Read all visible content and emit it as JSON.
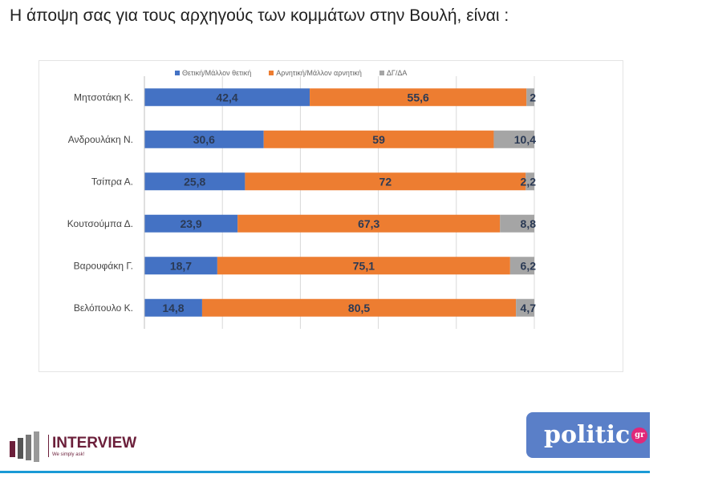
{
  "title": "Η άποψη σας για τους αρχηγούς των κομμάτων στην Βουλή,  είναι :",
  "logos": {
    "left": "INTERVIEW",
    "left_tagline": "We simply ask!",
    "right": "politic",
    "right_badge": "gr"
  },
  "chart_data": {
    "type": "bar",
    "orientation": "horizontal",
    "stacked": true,
    "categories": [
      "Μητσοτάκη Κ.",
      "Ανδρουλάκη Ν.",
      "Τσίπρα Α.",
      "Κουτσούμπα Δ.",
      "Βαρουφάκη Γ.",
      "Βελόπουλο Κ."
    ],
    "series": [
      {
        "name": "Θετική/Μάλλον θετική",
        "color": "#4472c4",
        "values": [
          42.4,
          30.6,
          25.8,
          23.9,
          18.7,
          14.8
        ]
      },
      {
        "name": "Αρνητική/Μάλλον αρνητική",
        "color": "#ed7d31",
        "values": [
          55.6,
          59,
          72,
          67.3,
          75.1,
          80.5
        ]
      },
      {
        "name": "ΔΓ/ΔΑ",
        "color": "#a5a5a5",
        "values": [
          2,
          10.4,
          2.2,
          8.8,
          6.2,
          4.7
        ]
      }
    ],
    "data_labels": [
      [
        "42,4",
        "55,6",
        "2"
      ],
      [
        "30,6",
        "59",
        "10,4"
      ],
      [
        "25,8",
        "72",
        "2,2"
      ],
      [
        "23,9",
        "67,3",
        "8,8"
      ],
      [
        "18,7",
        "75,1",
        "6,2"
      ],
      [
        "14,8",
        "80,5",
        "4,7"
      ]
    ],
    "xlim": [
      0,
      100
    ],
    "grid": true,
    "legend": "top"
  }
}
